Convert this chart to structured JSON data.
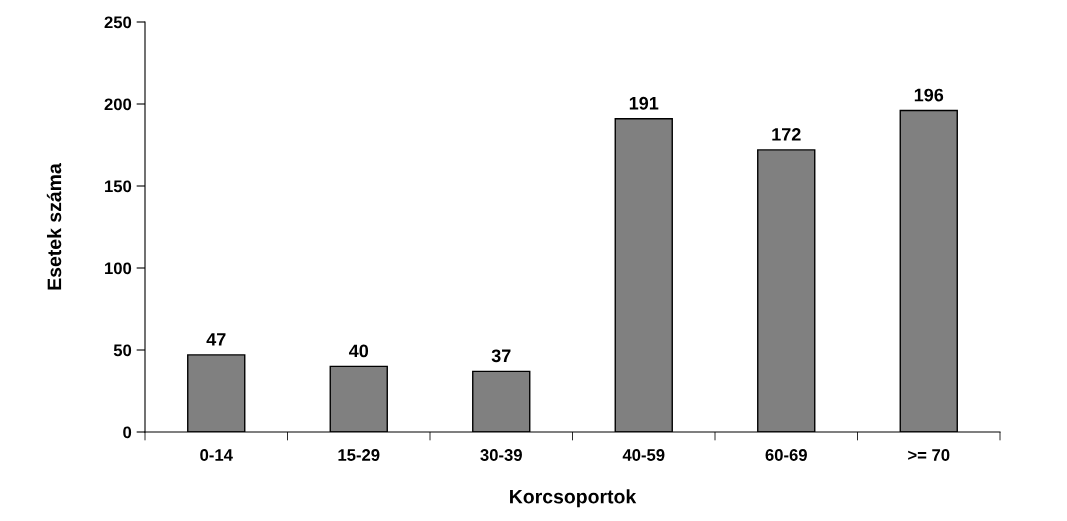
{
  "chart_data": {
    "type": "bar",
    "xlabel": "Korcsoportok",
    "ylabel": "Esetek száma",
    "categories": [
      "0-14",
      "15-29",
      "30-39",
      "40-59",
      "60-69",
      ">= 70"
    ],
    "values": [
      47,
      40,
      37,
      191,
      172,
      196
    ],
    "color": "#808080",
    "ylim": [
      0,
      250
    ],
    "yticks": [
      0,
      50,
      100,
      150,
      200,
      250
    ],
    "grid": false,
    "data_labels": true
  }
}
